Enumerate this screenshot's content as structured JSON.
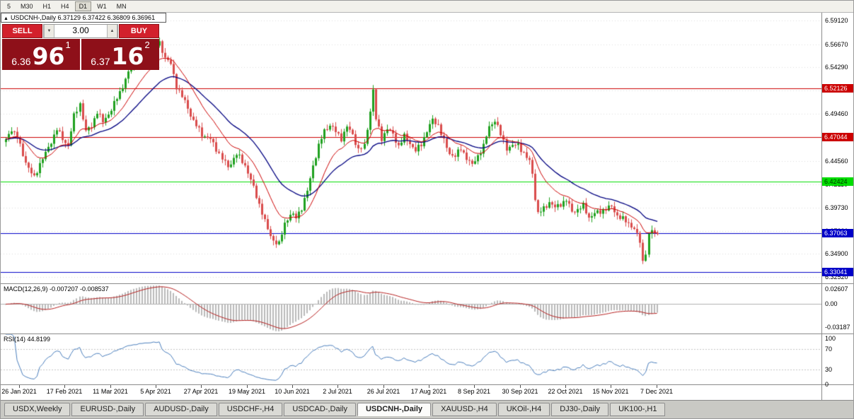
{
  "window": {
    "title": "USDCNH-,Daily"
  },
  "toolbar": {
    "periods": [
      "5",
      "M30",
      "H1",
      "H4",
      "D1",
      "W1",
      "MN"
    ],
    "active_period": "D1"
  },
  "chart_header": {
    "collapse_icon": "▲",
    "symbol_line": "USDCNH-,Daily 6.37129 6.37422 6.36809 6.36961"
  },
  "trade_panel": {
    "sell_label": "SELL",
    "buy_label": "BUY",
    "volume": "3.00",
    "volume_down_icon": "▼",
    "volume_up_icon": "▲",
    "sell_price_big": "6.36",
    "sell_price_pips": "96",
    "sell_price_sup": "1",
    "buy_price_big": "6.37",
    "buy_price_pips": "16",
    "buy_price_sup": "2"
  },
  "price_axis_labels": [
    "6.59120",
    "6.56670",
    "6.54290",
    "6.51910",
    "6.49460",
    "6.47010",
    "6.44560",
    "6.42110",
    "6.39730",
    "6.37280",
    "6.34900",
    "6.32520"
  ],
  "indicators": {
    "macd": {
      "label": "MACD(12,26,9) -0.007207 -0.008537",
      "axis_labels": [
        "0.02607",
        "0.00",
        "-0.03187"
      ]
    },
    "rsi": {
      "label": "RSI(14) 44.8199",
      "axis_labels": [
        "100",
        "70",
        "30",
        "0"
      ]
    }
  },
  "time_axis": {
    "labels": [
      "26 Jan 2021",
      "17 Feb 2021",
      "11 Mar 2021",
      "5 Apr 2021",
      "27 Apr 2021",
      "19 May 2021",
      "10 Jun 2021",
      "2 Jul 2021",
      "26 Jul 2021",
      "17 Aug 2021",
      "8 Sep 2021",
      "30 Sep 2021",
      "22 Oct 2021",
      "15 Nov 2021",
      "7 Dec 2021"
    ],
    "tick_indices": [
      5,
      21,
      37,
      53,
      69,
      85,
      101,
      117,
      133,
      149,
      165,
      181,
      197,
      213,
      229
    ]
  },
  "tabs": [
    {
      "label": "USDX,Weekly",
      "active": false
    },
    {
      "label": "EURUSD-,Daily",
      "active": false
    },
    {
      "label": "AUDUSD-,Daily",
      "active": false
    },
    {
      "label": "USDCHF-,H4",
      "active": false
    },
    {
      "label": "USDCAD-,Daily",
      "active": false
    },
    {
      "label": "USDCNH-,Daily",
      "active": true
    },
    {
      "label": "XAUUSD-,H4",
      "active": false
    },
    {
      "label": "UKOil-,H4",
      "active": false
    },
    {
      "label": "DJ30-,Daily",
      "active": false
    },
    {
      "label": "UK100-,H1",
      "active": false
    }
  ],
  "colors": {
    "up": "#1fa11f",
    "down": "#d94b4b",
    "ma_fast": "#cc0000",
    "ma_slow": "#000080",
    "grid": "#dedede",
    "macd_bar": "#b9b9b9",
    "macd_signal": "#b51f1f",
    "macd_zero": "#b0b0b0",
    "rsi_line": "#4a7ebc",
    "rsi_level": "#c4c4c4",
    "hline_red": "#cc0000",
    "hline_green": "#00dd00",
    "hline_blue": "#0000c8"
  },
  "chart_data": {
    "type": "candlestick",
    "symbol": "USDCNH-",
    "timeframe": "Daily",
    "title": "USDCNH-,Daily",
    "ohlc_current": {
      "open": 6.37129,
      "high": 6.37422,
      "low": 6.36809,
      "close": 6.36961
    },
    "y_range": [
      6.3185,
      6.5995
    ],
    "num_candles": 230,
    "noise": {
      "amp": 0.0032,
      "wick": 0.0042
    },
    "close_anchors": [
      [
        0,
        6.467
      ],
      [
        2,
        6.479
      ],
      [
        4,
        6.47
      ],
      [
        6,
        6.452
      ],
      [
        8,
        6.438
      ],
      [
        10,
        6.428
      ],
      [
        12,
        6.443
      ],
      [
        15,
        6.459
      ],
      [
        18,
        6.479
      ],
      [
        20,
        6.468
      ],
      [
        22,
        6.462
      ],
      [
        24,
        6.492
      ],
      [
        26,
        6.505
      ],
      [
        28,
        6.476
      ],
      [
        30,
        6.482
      ],
      [
        32,
        6.497
      ],
      [
        34,
        6.486
      ],
      [
        37,
        6.499
      ],
      [
        40,
        6.517
      ],
      [
        43,
        6.537
      ],
      [
        46,
        6.549
      ],
      [
        49,
        6.558
      ],
      [
        52,
        6.564
      ],
      [
        54,
        6.568
      ],
      [
        56,
        6.553
      ],
      [
        58,
        6.546
      ],
      [
        60,
        6.523
      ],
      [
        63,
        6.507
      ],
      [
        66,
        6.487
      ],
      [
        69,
        6.473
      ],
      [
        72,
        6.468
      ],
      [
        75,
        6.453
      ],
      [
        78,
        6.439
      ],
      [
        81,
        6.453
      ],
      [
        84,
        6.441
      ],
      [
        86,
        6.426
      ],
      [
        88,
        6.409
      ],
      [
        90,
        6.392
      ],
      [
        92,
        6.374
      ],
      [
        94,
        6.363
      ],
      [
        96,
        6.359
      ],
      [
        98,
        6.381
      ],
      [
        100,
        6.39
      ],
      [
        102,
        6.387
      ],
      [
        104,
        6.397
      ],
      [
        106,
        6.414
      ],
      [
        108,
        6.441
      ],
      [
        110,
        6.461
      ],
      [
        112,
        6.477
      ],
      [
        114,
        6.483
      ],
      [
        116,
        6.476
      ],
      [
        118,
        6.469
      ],
      [
        120,
        6.481
      ],
      [
        122,
        6.473
      ],
      [
        124,
        6.457
      ],
      [
        126,
        6.461
      ],
      [
        128,
        6.498
      ],
      [
        129,
        6.519
      ],
      [
        130,
        6.489
      ],
      [
        132,
        6.469
      ],
      [
        134,
        6.479
      ],
      [
        136,
        6.473
      ],
      [
        138,
        6.461
      ],
      [
        140,
        6.471
      ],
      [
        142,
        6.464
      ],
      [
        144,
        6.456
      ],
      [
        146,
        6.463
      ],
      [
        148,
        6.477
      ],
      [
        150,
        6.488
      ],
      [
        152,
        6.483
      ],
      [
        154,
        6.466
      ],
      [
        156,
        6.453
      ],
      [
        158,
        6.451
      ],
      [
        160,
        6.458
      ],
      [
        162,
        6.449
      ],
      [
        164,
        6.441
      ],
      [
        166,
        6.451
      ],
      [
        168,
        6.461
      ],
      [
        170,
        6.481
      ],
      [
        172,
        6.488
      ],
      [
        174,
        6.473
      ],
      [
        176,
        6.459
      ],
      [
        178,
        6.461
      ],
      [
        180,
        6.463
      ],
      [
        182,
        6.453
      ],
      [
        184,
        6.445
      ],
      [
        185,
        6.433
      ],
      [
        186,
        6.407
      ],
      [
        187,
        6.391
      ],
      [
        189,
        6.396
      ],
      [
        191,
        6.403
      ],
      [
        193,
        6.397
      ],
      [
        195,
        6.401
      ],
      [
        197,
        6.405
      ],
      [
        199,
        6.393
      ],
      [
        201,
        6.395
      ],
      [
        203,
        6.399
      ],
      [
        205,
        6.387
      ],
      [
        207,
        6.391
      ],
      [
        209,
        6.393
      ],
      [
        211,
        6.396
      ],
      [
        213,
        6.398
      ],
      [
        215,
        6.389
      ],
      [
        217,
        6.385
      ],
      [
        219,
        6.381
      ],
      [
        221,
        6.375
      ],
      [
        223,
        6.362
      ],
      [
        224,
        6.341
      ],
      [
        225,
        6.351
      ],
      [
        226,
        6.368
      ],
      [
        227,
        6.373
      ],
      [
        228,
        6.371
      ],
      [
        229,
        6.36961
      ]
    ],
    "hlines": [
      {
        "value": 6.52126,
        "label": "6.52126",
        "color": "#cc0000",
        "text": "#ffffff"
      },
      {
        "value": 6.47044,
        "label": "6.47044",
        "color": "#cc0000",
        "text": "#ffffff"
      },
      {
        "value": 6.42424,
        "label": "6.42424",
        "color": "#00dd00",
        "text": "#003300"
      },
      {
        "value": 6.37063,
        "label": "6.37063",
        "color": "#0000c8",
        "text": "#ffffff"
      },
      {
        "value": 6.33041,
        "label": "6.33041",
        "color": "#0000c8",
        "text": "#ffffff"
      }
    ],
    "moving_averages": [
      {
        "period": 13,
        "color": "#cc0000"
      },
      {
        "period": 30,
        "color": "#000080"
      }
    ],
    "macd": {
      "fast": 12,
      "slow": 26,
      "signal": 9,
      "current_macd": -0.007207,
      "current_signal": -0.008537,
      "axis_range": [
        -0.03187,
        0.02607
      ]
    },
    "rsi": {
      "period": 14,
      "current": 44.8199,
      "levels": [
        30,
        70
      ],
      "range": [
        0,
        100
      ]
    }
  }
}
